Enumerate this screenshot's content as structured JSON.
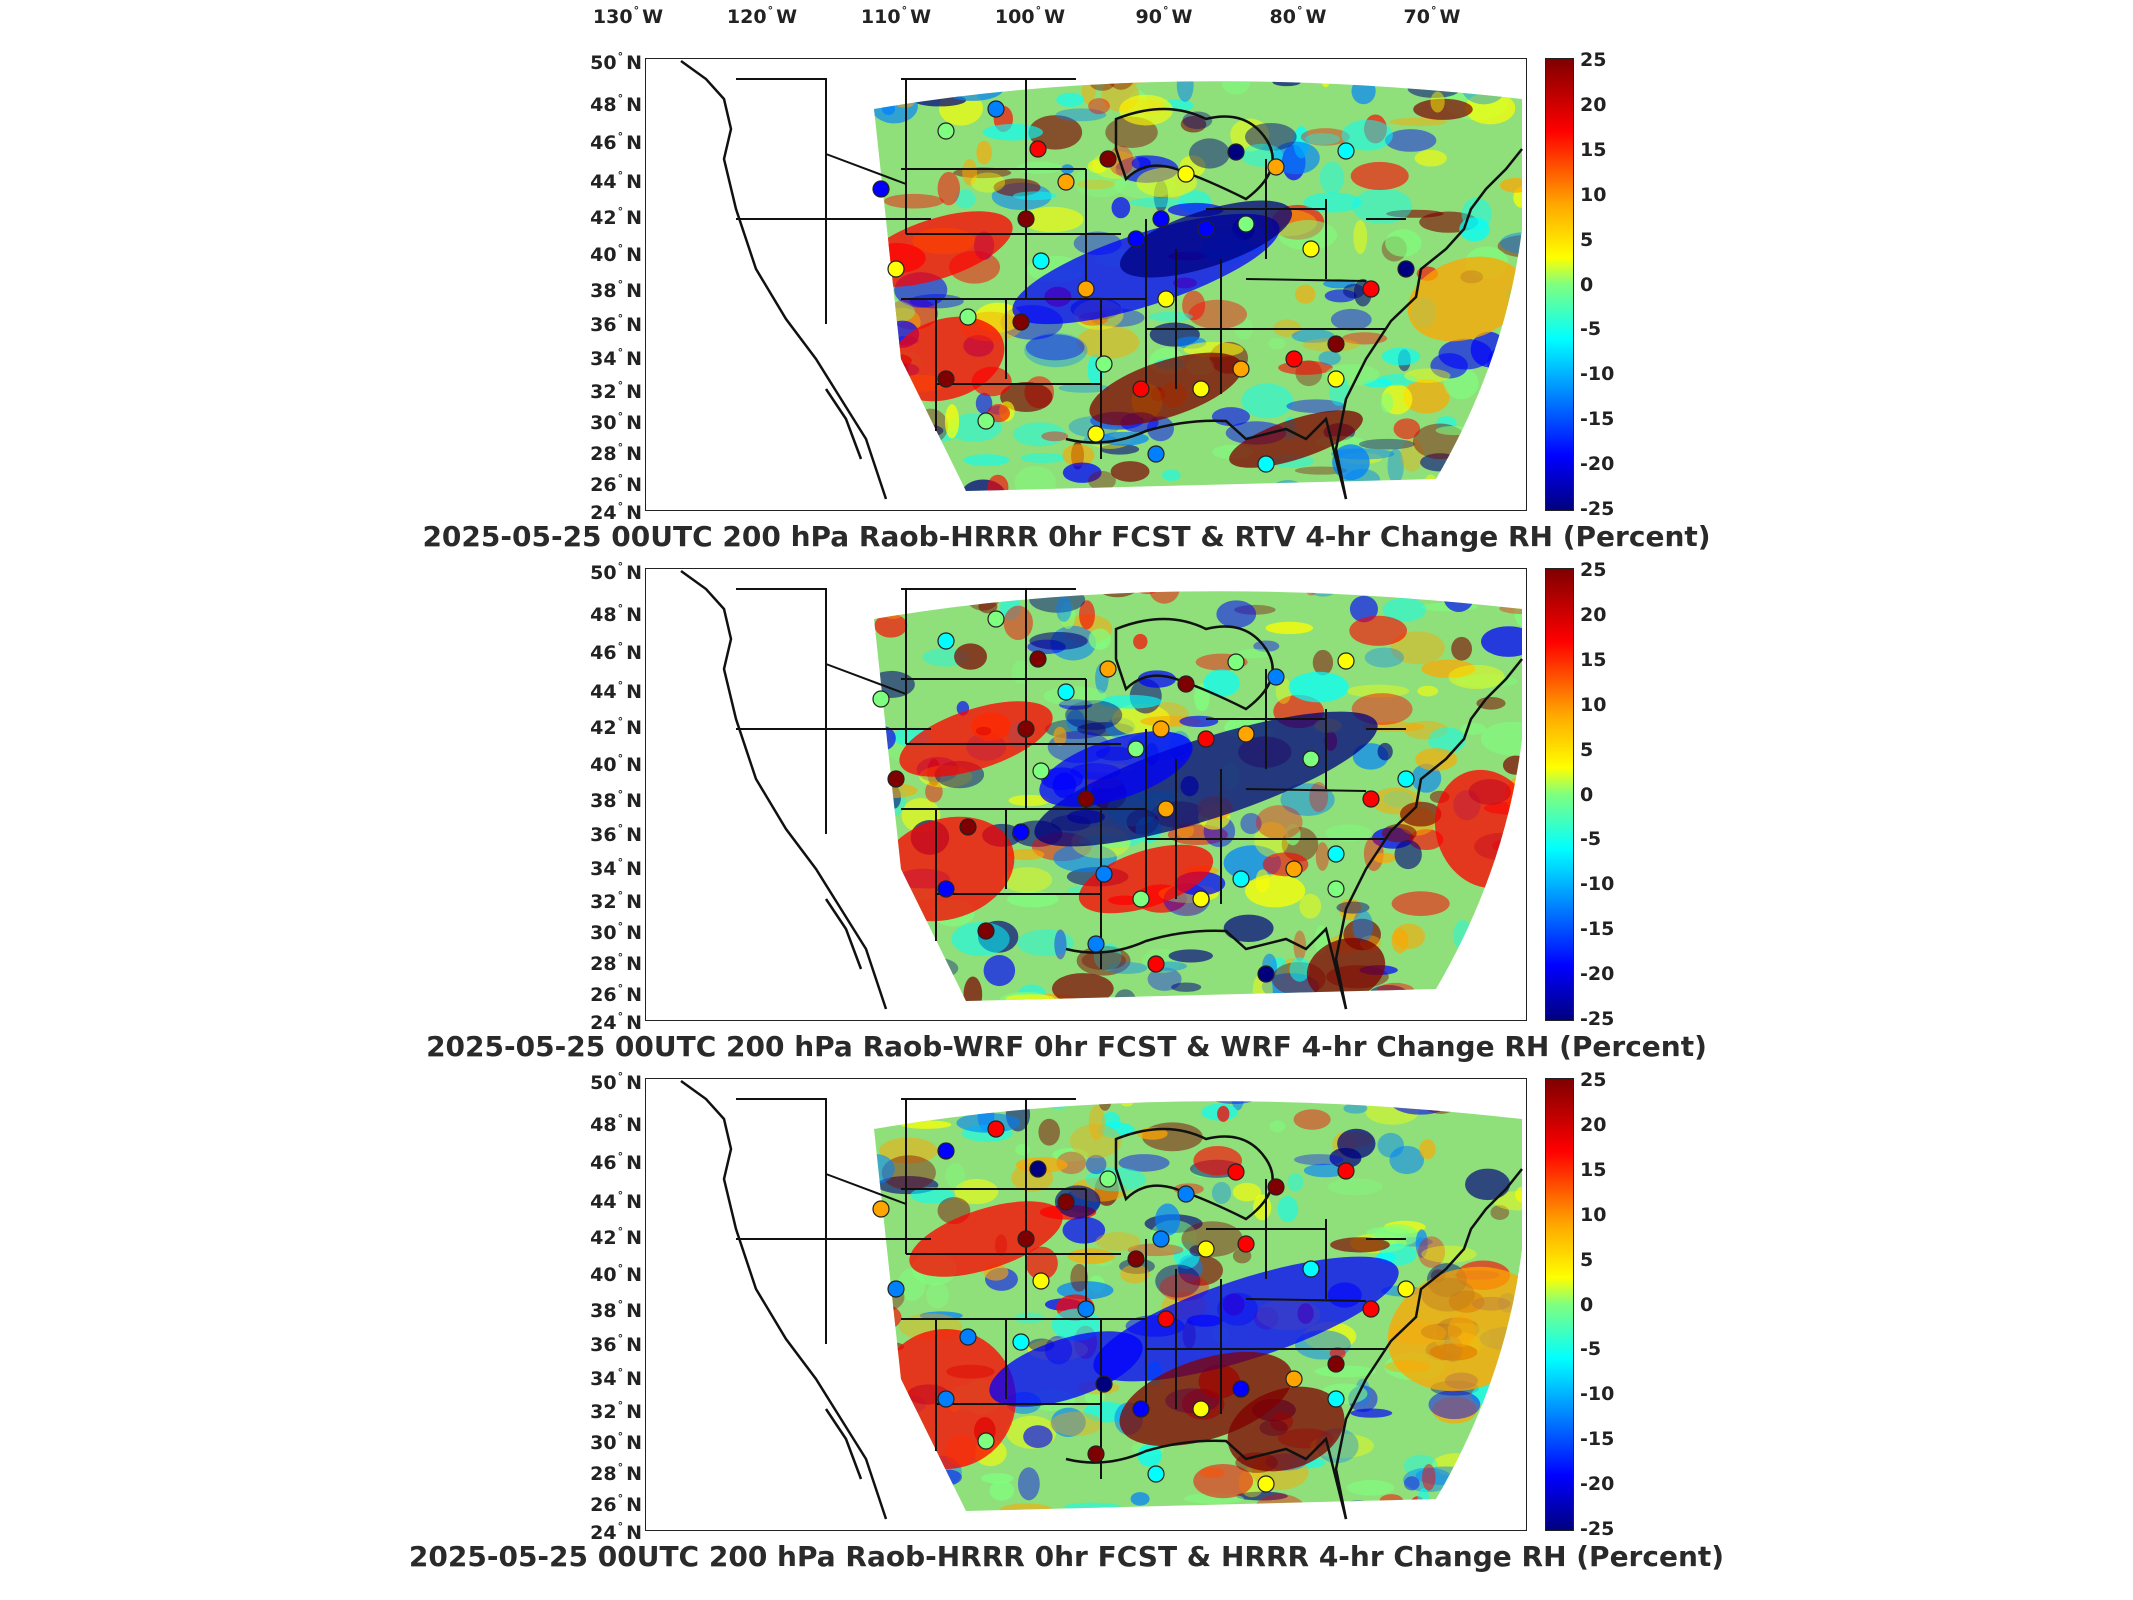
{
  "longitude_labels": [
    "130",
    "120",
    "110",
    "100",
    "90",
    "80",
    "70"
  ],
  "lon_units": [
    "W",
    "W",
    "W",
    "W",
    "W",
    "W",
    "W"
  ],
  "latitude_labels": [
    "50",
    "48",
    "46",
    "44",
    "42",
    "40",
    "38",
    "36",
    "34",
    "32",
    "30",
    "28",
    "26",
    "24"
  ],
  "lat_unit": "N",
  "degree_symbol": "°",
  "colorbar": {
    "ticks": [
      "25",
      "20",
      "15",
      "10",
      "5",
      "0",
      "-5",
      "-10",
      "-15",
      "-20",
      "-25"
    ],
    "range": [
      -25,
      25
    ],
    "colormap": "jet",
    "colors": [
      "#00007f",
      "#0000ff",
      "#0080ff",
      "#00ffff",
      "#7fff7f",
      "#ffff00",
      "#ffa500",
      "#ff0000",
      "#7f0000"
    ]
  },
  "panels": [
    {
      "title": "2025-05-25 00UTC 200 hPa Raob-HRRR 0hr FCST & RTV 4-hr Change RH (Percent)"
    },
    {
      "title": "2025-05-25 00UTC 200 hPa Raob-WRF 0hr FCST & WRF 4-hr Change RH (Percent)"
    },
    {
      "title": "2025-05-25 00UTC 200 hPa Raob-HRRR 0hr FCST & HRRR 4-hr Change RH (Percent)"
    }
  ]
}
